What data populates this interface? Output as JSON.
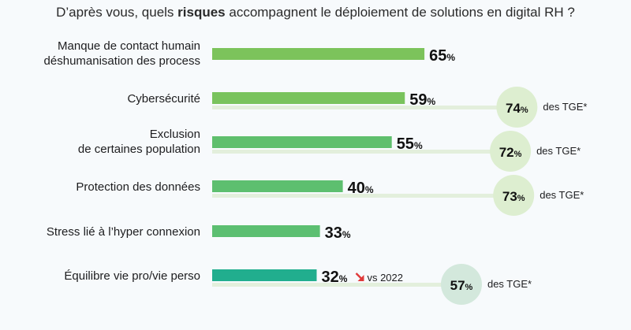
{
  "chart_data": {
    "type": "bar",
    "title_prefix": "D’après vous, quels ",
    "title_bold": "risques",
    "title_suffix": " accompagnent le déploiement de solutions en digital RH ?",
    "xlim": [
      0,
      100
    ],
    "unit": "%",
    "tge_label": "des TGE*",
    "colors": {
      "bar": "#77c45a",
      "bar_dark": "#22b08a",
      "track": "#e3efdc",
      "bubble": "#ddeed0",
      "bubble_dark": "#d3e8dc",
      "arrow": "#e03a3a"
    },
    "series": [
      {
        "lines": [
          "Manque de contact humain",
          "déshumanisation des process"
        ],
        "value": 65,
        "tge": null,
        "color": "#7cc35b"
      },
      {
        "lines": [
          "Cybersécurité"
        ],
        "value": 59,
        "tge": 74,
        "color": "#79c35d"
      },
      {
        "lines": [
          "Exclusion",
          "de certaines population"
        ],
        "value": 55,
        "tge": 72,
        "color": "#5fbf6d"
      },
      {
        "lines": [
          "Protection des données"
        ],
        "value": 40,
        "tge": 73,
        "color": "#5dbf6f"
      },
      {
        "lines": [
          "Stress lié à l’hyper connexion"
        ],
        "value": 33,
        "tge": null,
        "color": "#5cbf71"
      },
      {
        "lines": [
          "Équilibre vie pro/vie perso"
        ],
        "value": 32,
        "tge": 57,
        "color": "#21ae8e",
        "trend": "down",
        "trend_label": "vs 2022"
      }
    ]
  }
}
